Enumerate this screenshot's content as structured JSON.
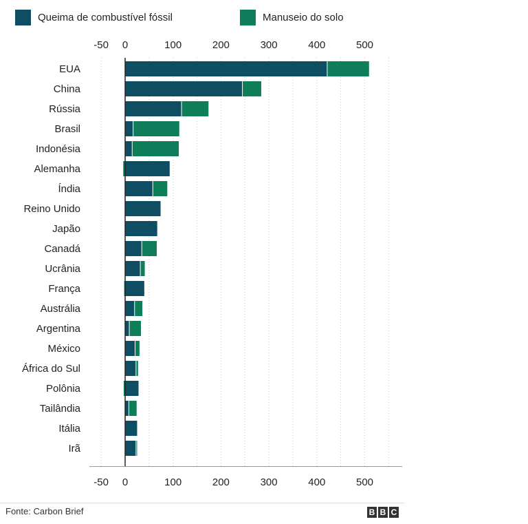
{
  "colors": {
    "fossil": "#0f4d63",
    "land": "#0d7d5a",
    "grid": "#c8c8c8",
    "axis": "#222222"
  },
  "footer": {
    "source": "Fonte: Carbon Brief",
    "brand": [
      "B",
      "B",
      "C"
    ]
  },
  "chart_data": {
    "type": "bar",
    "orientation": "horizontal",
    "stacked": true,
    "xlim": [
      -70,
      560
    ],
    "xticks": [
      -50,
      0,
      100,
      200,
      300,
      400,
      500
    ],
    "grid": true,
    "legend_position": "top",
    "categories": [
      "EUA",
      "China",
      "Rússia",
      "Brasil",
      "Indonésia",
      "Alemanha",
      "Índia",
      "Reino Unido",
      "Japão",
      "Canadá",
      "Ucrânia",
      "França",
      "Austrália",
      "Argentina",
      "México",
      "África do Sul",
      "Polônia",
      "Tailândia",
      "Itália",
      "Irã"
    ],
    "series": [
      {
        "name": "Queima de combustível fóssil",
        "values": [
          421,
          244,
          117,
          16,
          14,
          93,
          57,
          74,
          67,
          34,
          31,
          40,
          19,
          8,
          20,
          22,
          28,
          7,
          25,
          22
        ]
      },
      {
        "name": "Manuseio do solo",
        "values": [
          88,
          40,
          57,
          97,
          98,
          -4,
          31,
          0,
          0,
          32,
          10,
          -2,
          17,
          25,
          10,
          5,
          -3,
          17,
          0,
          3
        ]
      }
    ]
  }
}
